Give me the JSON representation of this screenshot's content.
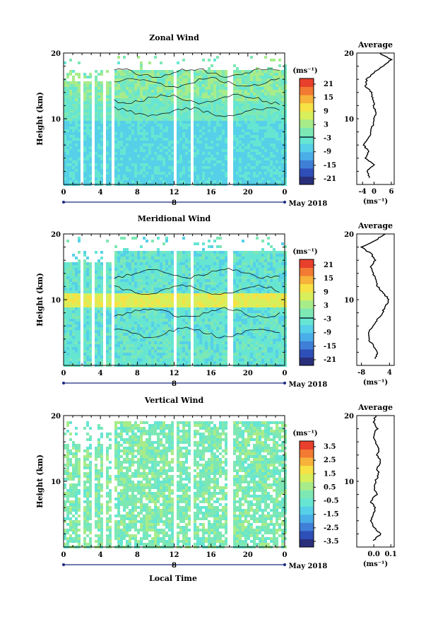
{
  "chart_data": {
    "type": "heatmap",
    "xlabel": "Local Time",
    "date_label": "May 2018",
    "day_label": "8",
    "x_ticks": [
      "0",
      "4",
      "8",
      "12",
      "16",
      "20",
      "0"
    ],
    "y_ticks": [
      "10",
      "20"
    ],
    "ylabel": "Height (km)",
    "avg_title": "Average",
    "avg_unit": "(ms⁻¹)",
    "panels": [
      {
        "title": "Zonal Wind",
        "colorbar_unit": "(ms⁻¹)",
        "colorbar_ticks": [
          "21",
          "15",
          "9",
          "3",
          "-3",
          "-9",
          "-15",
          "-21"
        ],
        "avg_xticks": [
          "-4",
          "0",
          "6"
        ],
        "avg_xlim": [
          -6,
          7
        ],
        "avg_profile": [
          [
            -1.5,
            1
          ],
          [
            -2.5,
            2
          ],
          [
            0,
            3
          ],
          [
            -3,
            4
          ],
          [
            -2,
            5
          ],
          [
            -3.5,
            6
          ],
          [
            -2,
            7
          ],
          [
            -1,
            8
          ],
          [
            -0.5,
            9
          ],
          [
            0,
            10
          ],
          [
            0.5,
            11
          ],
          [
            0,
            12
          ],
          [
            -0.5,
            13
          ],
          [
            -1,
            14
          ],
          [
            -3,
            15
          ],
          [
            -2.5,
            16
          ],
          [
            0,
            17
          ],
          [
            3,
            18
          ],
          [
            6,
            19
          ],
          [
            2,
            20
          ]
        ]
      },
      {
        "title": "Meridional Wind",
        "colorbar_unit": "(ms⁻¹)",
        "colorbar_ticks": [
          "21",
          "15",
          "9",
          "3",
          "-3",
          "-9",
          "-15",
          "-21"
        ],
        "avg_xticks": [
          "-8",
          "4"
        ],
        "avg_xlim": [
          -10,
          6
        ],
        "avg_profile": [
          [
            -2,
            1
          ],
          [
            -1,
            2
          ],
          [
            -3,
            3
          ],
          [
            -5,
            4
          ],
          [
            -5,
            5
          ],
          [
            -3,
            6
          ],
          [
            -1,
            7
          ],
          [
            1,
            8
          ],
          [
            2,
            9
          ],
          [
            4,
            10
          ],
          [
            1,
            11
          ],
          [
            -1,
            12
          ],
          [
            -2,
            13
          ],
          [
            -3,
            14
          ],
          [
            -4,
            15
          ],
          [
            -2,
            16
          ],
          [
            -4,
            17
          ],
          [
            -8,
            18
          ],
          [
            -2,
            19
          ],
          [
            2,
            20
          ]
        ]
      },
      {
        "title": "Vertical Wind",
        "colorbar_unit": "(ms⁻¹)",
        "colorbar_ticks": [
          "3.5",
          "2.5",
          "1.5",
          "0.5",
          "-0.5",
          "-1.5",
          "-2.5",
          "-3.5"
        ],
        "avg_xticks": [
          "0.0",
          "0.1"
        ],
        "avg_xlim": [
          -0.1,
          0.12
        ],
        "avg_profile": [
          [
            0.0,
            1
          ],
          [
            0.04,
            2
          ],
          [
            0.0,
            3
          ],
          [
            -0.02,
            4
          ],
          [
            0.0,
            5
          ],
          [
            0.01,
            6
          ],
          [
            -0.02,
            7
          ],
          [
            0.02,
            8
          ],
          [
            0.0,
            9
          ],
          [
            0.01,
            10
          ],
          [
            0.03,
            11
          ],
          [
            0.02,
            12
          ],
          [
            0.04,
            13
          ],
          [
            0.02,
            14
          ],
          [
            0.03,
            15
          ],
          [
            0.01,
            16
          ],
          [
            0.0,
            17
          ],
          [
            0.02,
            18
          ],
          [
            0.0,
            19
          ],
          [
            0.01,
            20
          ]
        ]
      }
    ]
  }
}
